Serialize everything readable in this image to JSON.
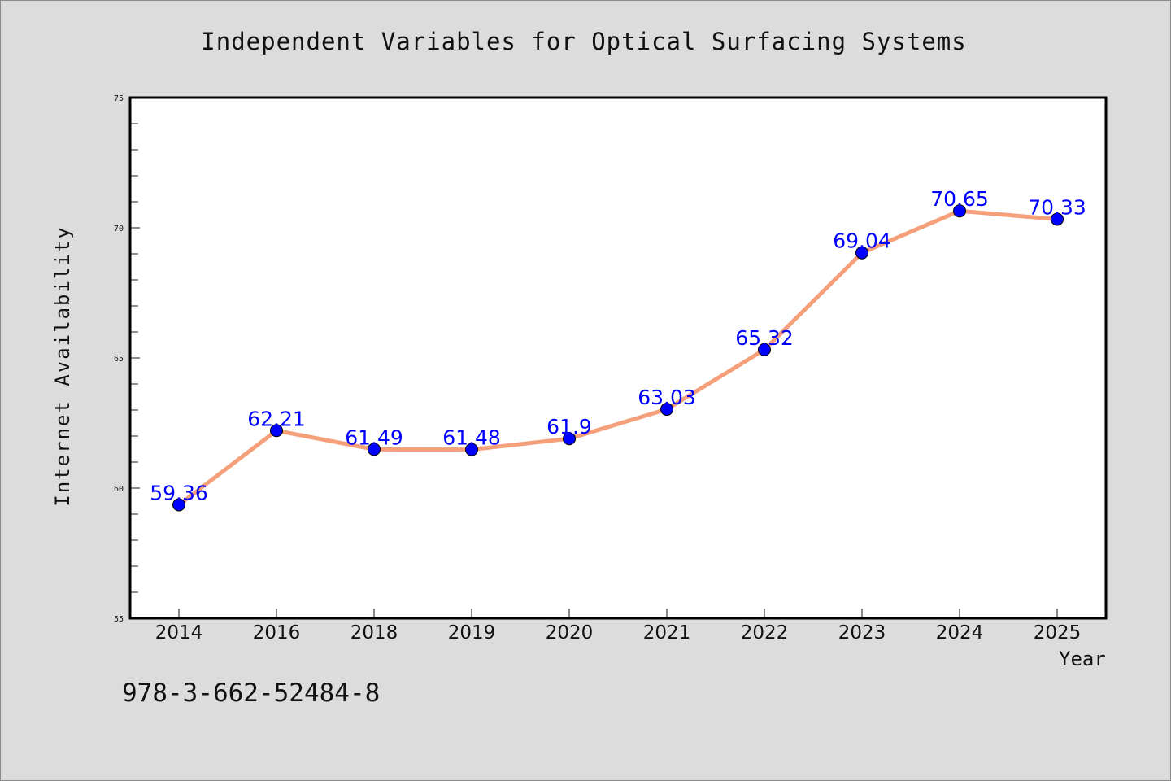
{
  "colors": {
    "background": "#dcdcdc",
    "plot_background": "#ffffff",
    "line": "#f5a07a",
    "marker": "#0000ff",
    "data_label": "#0000ff"
  },
  "footer_code": "978-3-662-52484-8",
  "chart_data": {
    "type": "line",
    "title": "Independent Variables for Optical Surfacing Systems",
    "xlabel": "Year",
    "ylabel": "Internet Availability",
    "categories": [
      "2014",
      "2016",
      "2018",
      "2019",
      "2020",
      "2021",
      "2022",
      "2023",
      "2024",
      "2025"
    ],
    "series": [
      {
        "values": [
          59.36,
          62.21,
          61.49,
          61.48,
          61.9,
          63.03,
          65.32,
          69.04,
          70.65,
          70.33
        ],
        "labels": [
          "59.36",
          "62.21",
          "61.49",
          "61.48",
          "61.9",
          "63.03",
          "65.32",
          "69.04",
          "70.65",
          "70.33"
        ]
      }
    ],
    "ylim": [
      55,
      75
    ],
    "yticks": [
      55,
      60,
      65,
      70,
      75
    ],
    "ytick_labels": [
      "55",
      "60",
      "65",
      "70",
      "75"
    ],
    "y_minor_step": 1,
    "grid": false,
    "markers": true,
    "data_labels": true
  }
}
